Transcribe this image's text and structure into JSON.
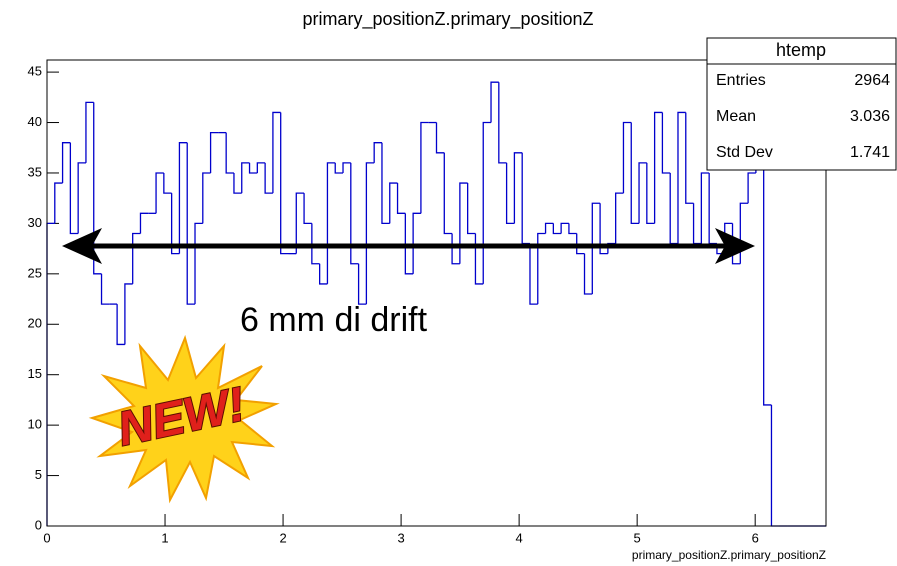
{
  "chart_data": {
    "type": "histogram",
    "title": "primary_positionZ.primary_positionZ",
    "x_label": "primary_positionZ.primary_positionZ",
    "bins": [
      0,
      0.066,
      0.132,
      0.198,
      0.264,
      0.33,
      0.396,
      0.462,
      0.528,
      0.594,
      0.66,
      0.726,
      0.792,
      0.858,
      0.924,
      0.99,
      1.056,
      1.122,
      1.188,
      1.254,
      1.32,
      1.386,
      1.452,
      1.518,
      1.584,
      1.65,
      1.716,
      1.782,
      1.848,
      1.914,
      1.98,
      2.046,
      2.112,
      2.178,
      2.244,
      2.31,
      2.376,
      2.442,
      2.508,
      2.574,
      2.64,
      2.706,
      2.772,
      2.838,
      2.904,
      2.97,
      3.036,
      3.102,
      3.168,
      3.234,
      3.3,
      3.366,
      3.432,
      3.498,
      3.564,
      3.63,
      3.696,
      3.762,
      3.828,
      3.894,
      3.96,
      4.026,
      4.092,
      4.158,
      4.224,
      4.29,
      4.356,
      4.422,
      4.488,
      4.554,
      4.62,
      4.686,
      4.752,
      4.818,
      4.884,
      4.95,
      5.016,
      5.082,
      5.148,
      5.214,
      5.28,
      5.346,
      5.412,
      5.478,
      5.544,
      5.61,
      5.676,
      5.742,
      5.808,
      5.874,
      5.94,
      6.006,
      6.072,
      6.138,
      6.204,
      6.27,
      6.336,
      6.402,
      6.468,
      6.534,
      6.6
    ],
    "counts": [
      30,
      34,
      38,
      29,
      36,
      42,
      25,
      22,
      22,
      18,
      24,
      29,
      31,
      31,
      35,
      33,
      27,
      38,
      22,
      30,
      35,
      39,
      39,
      35,
      33,
      36,
      35,
      36,
      33,
      41,
      27,
      27,
      33,
      30,
      26,
      24,
      36,
      35,
      36,
      26,
      22,
      36,
      38,
      30,
      34,
      31,
      25,
      31,
      40,
      40,
      37,
      29,
      26,
      34,
      29,
      24,
      40,
      44,
      36,
      30,
      37,
      28,
      22,
      29,
      30,
      29,
      30,
      29,
      27,
      23,
      32,
      27,
      28,
      33,
      40,
      30,
      36,
      30,
      41,
      35,
      28,
      41,
      32,
      28,
      35,
      28,
      27,
      30,
      26,
      32,
      35,
      37,
      12,
      0,
      0,
      0,
      0,
      0,
      0,
      0
    ],
    "color": "#0000cc",
    "xlim": [
      0,
      6.6
    ],
    "ylim": [
      0,
      46.2
    ],
    "xticks": [
      0,
      1,
      2,
      3,
      4,
      5,
      6
    ],
    "yticks": [
      0,
      5,
      10,
      15,
      20,
      25,
      30,
      35,
      40,
      45
    ],
    "stats": {
      "name": "htemp",
      "rows": [
        [
          "Entries",
          "2964"
        ],
        [
          "Mean",
          "3.036"
        ],
        [
          "Std Dev",
          "1.741"
        ]
      ]
    },
    "annotations": [
      "6 mm di drift",
      "NEW!"
    ]
  }
}
